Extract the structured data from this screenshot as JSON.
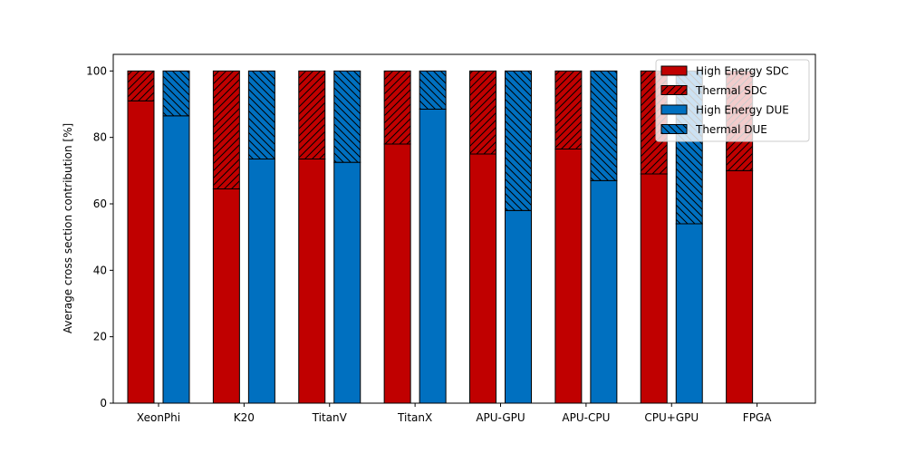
{
  "chart_data": {
    "type": "bar",
    "stacked": true,
    "grouped": true,
    "title": "",
    "xlabel": "",
    "ylabel": "Average cross section contribution [%]",
    "ylim": [
      0,
      105
    ],
    "yticks": [
      0,
      20,
      40,
      60,
      80,
      100
    ],
    "grid": false,
    "legend_position": "top-right",
    "categories": [
      "XeonPhi",
      "K20",
      "TitanV",
      "TitanX",
      "APU-GPU",
      "APU-CPU",
      "CPU+GPU",
      "FPGA"
    ],
    "series": [
      {
        "name": "High Energy SDC",
        "group": "SDC",
        "color": "#c00000",
        "hatch": "none",
        "values": [
          91,
          64.5,
          73.5,
          78,
          75,
          76.5,
          69,
          70
        ]
      },
      {
        "name": "Thermal SDC",
        "group": "SDC",
        "color": "#c00000",
        "hatch": "forward-diagonal",
        "values": [
          9,
          35.5,
          26.5,
          22,
          25,
          23.5,
          31,
          30
        ]
      },
      {
        "name": "High Energy DUE",
        "group": "DUE",
        "color": "#0070c0",
        "hatch": "none",
        "values": [
          86.5,
          73.5,
          72.5,
          88.5,
          58,
          67,
          54,
          null
        ]
      },
      {
        "name": "Thermal DUE",
        "group": "DUE",
        "color": "#0070c0",
        "hatch": "back-diagonal",
        "values": [
          13.5,
          26.5,
          27.5,
          11.5,
          42,
          33,
          46,
          null
        ]
      }
    ]
  }
}
